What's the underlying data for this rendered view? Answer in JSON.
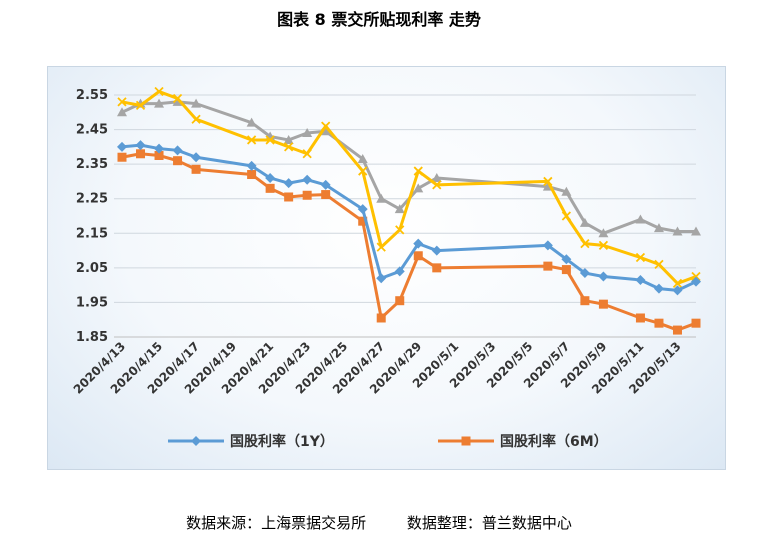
{
  "title": "图表 8  票交所贴现利率  走势",
  "source": {
    "left": "数据来源：上海票据交易所",
    "right": "数据整理：普兰数据中心"
  },
  "chart_data": {
    "type": "line",
    "xlabel": "",
    "ylabel": "",
    "ylim": [
      1.85,
      2.55
    ],
    "yticks": [
      1.85,
      1.95,
      2.05,
      2.15,
      2.25,
      2.35,
      2.45,
      2.55
    ],
    "ytick_labels": [
      "1.85",
      "1.95",
      "2.05",
      "2.15",
      "2.25",
      "2.35",
      "2.45",
      "2.55"
    ],
    "x_ticks": [
      "2020/4/13",
      "2020/4/15",
      "2020/4/17",
      "2020/4/19",
      "2020/4/21",
      "2020/4/23",
      "2020/4/25",
      "2020/4/27",
      "2020/4/29",
      "2020/5/1",
      "2020/5/3",
      "2020/5/5",
      "2020/5/7",
      "2020/5/9",
      "2020/5/11",
      "2020/5/13"
    ],
    "legend_position": "bottom",
    "series": [
      {
        "name": "国股利率（1Y）",
        "color": "#5b9bd5",
        "marker": "diamond",
        "in_legend": true,
        "x": [
          "2020/4/13",
          "2020/4/14",
          "2020/4/15",
          "2020/4/16",
          "2020/4/17",
          "2020/4/20",
          "2020/4/21",
          "2020/4/22",
          "2020/4/23",
          "2020/4/24",
          "2020/4/26",
          "2020/4/27",
          "2020/4/28",
          "2020/4/29",
          "2020/4/30",
          "2020/5/6",
          "2020/5/7",
          "2020/5/8",
          "2020/5/9",
          "2020/5/11",
          "2020/5/12",
          "2020/5/13",
          "2020/5/14"
        ],
        "values": [
          2.4,
          2.405,
          2.395,
          2.39,
          2.37,
          2.345,
          2.31,
          2.295,
          2.305,
          2.29,
          2.22,
          2.02,
          2.04,
          2.12,
          2.1,
          2.115,
          2.075,
          2.035,
          2.025,
          2.015,
          1.99,
          1.985,
          2.01
        ]
      },
      {
        "name": "国股利率（6M）",
        "color": "#ed7d31",
        "marker": "square",
        "in_legend": true,
        "x": [
          "2020/4/13",
          "2020/4/14",
          "2020/4/15",
          "2020/4/16",
          "2020/4/17",
          "2020/4/20",
          "2020/4/21",
          "2020/4/22",
          "2020/4/23",
          "2020/4/24",
          "2020/4/26",
          "2020/4/27",
          "2020/4/28",
          "2020/4/29",
          "2020/4/30",
          "2020/5/6",
          "2020/5/7",
          "2020/5/8",
          "2020/5/9",
          "2020/5/11",
          "2020/5/12",
          "2020/5/13",
          "2020/5/14"
        ],
        "values": [
          2.37,
          2.38,
          2.375,
          2.36,
          2.335,
          2.32,
          2.28,
          2.255,
          2.26,
          2.262,
          2.185,
          1.905,
          1.955,
          2.085,
          2.05,
          2.055,
          2.045,
          1.955,
          1.945,
          1.905,
          1.89,
          1.87,
          1.89
        ]
      },
      {
        "name": "",
        "color": "#a5a5a5",
        "marker": "triangle",
        "in_legend": false,
        "x": [
          "2020/4/13",
          "2020/4/14",
          "2020/4/15",
          "2020/4/16",
          "2020/4/17",
          "2020/4/20",
          "2020/4/21",
          "2020/4/22",
          "2020/4/23",
          "2020/4/24",
          "2020/4/26",
          "2020/4/27",
          "2020/4/28",
          "2020/4/29",
          "2020/4/30",
          "2020/5/6",
          "2020/5/7",
          "2020/5/8",
          "2020/5/9",
          "2020/5/11",
          "2020/5/12",
          "2020/5/13",
          "2020/5/14"
        ],
        "values": [
          2.5,
          2.525,
          2.525,
          2.53,
          2.525,
          2.47,
          2.43,
          2.42,
          2.44,
          2.445,
          2.365,
          2.25,
          2.22,
          2.28,
          2.31,
          2.285,
          2.27,
          2.18,
          2.15,
          2.19,
          2.165,
          2.155,
          2.155
        ]
      },
      {
        "name": "",
        "color": "#ffc000",
        "marker": "x",
        "in_legend": false,
        "x": [
          "2020/4/13",
          "2020/4/14",
          "2020/4/15",
          "2020/4/16",
          "2020/4/17",
          "2020/4/20",
          "2020/4/21",
          "2020/4/22",
          "2020/4/23",
          "2020/4/24",
          "2020/4/26",
          "2020/4/27",
          "2020/4/28",
          "2020/4/29",
          "2020/4/30",
          "2020/5/6",
          "2020/5/7",
          "2020/5/8",
          "2020/5/9",
          "2020/5/11",
          "2020/5/12",
          "2020/5/13",
          "2020/5/14"
        ],
        "values": [
          2.53,
          2.52,
          2.56,
          2.54,
          2.48,
          2.42,
          2.42,
          2.4,
          2.38,
          2.46,
          2.33,
          2.11,
          2.16,
          2.33,
          2.29,
          2.3,
          2.2,
          2.12,
          2.115,
          2.08,
          2.06,
          2.005,
          2.025
        ]
      }
    ]
  }
}
